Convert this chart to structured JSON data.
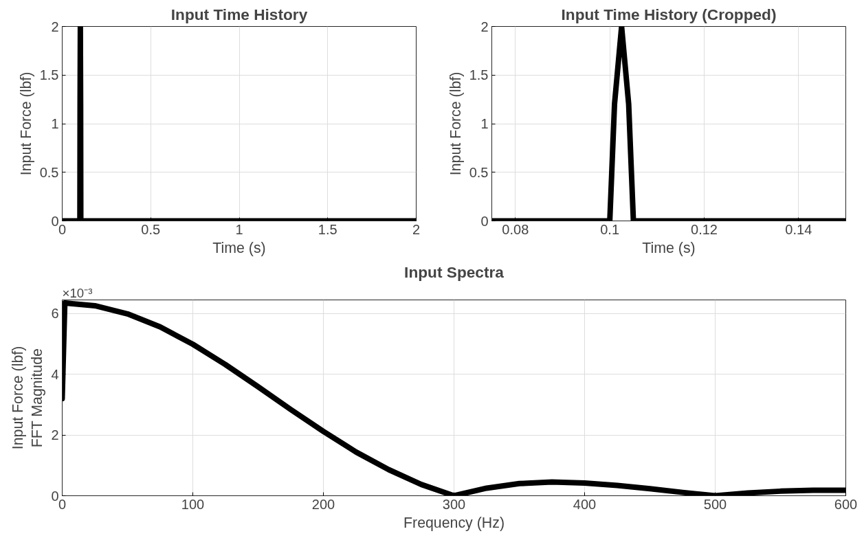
{
  "chart_data": [
    {
      "type": "line",
      "title": "Input Time History",
      "xlabel": "Time (s)",
      "ylabel": "Input Force (lbf)",
      "xlim": [
        0,
        2
      ],
      "ylim": [
        0,
        2
      ],
      "xticks": [
        0,
        0.5,
        1,
        1.5,
        2
      ],
      "yticks": [
        0,
        0.5,
        1,
        1.5,
        2
      ],
      "grid": true,
      "series": [
        {
          "color": "#000000",
          "x": [
            0,
            0.1,
            0.101,
            0.1025,
            0.104,
            0.105,
            2
          ],
          "values": [
            0,
            0,
            1.2,
            2,
            1.2,
            0,
            0
          ]
        }
      ]
    },
    {
      "type": "line",
      "title": "Input Time History (Cropped)",
      "xlabel": "Time (s)",
      "ylabel": "Input Force (lbf)",
      "xlim": [
        0.075,
        0.15
      ],
      "ylim": [
        0,
        2
      ],
      "xticks": [
        0.08,
        0.1,
        0.12,
        0.14
      ],
      "yticks": [
        0,
        0.5,
        1,
        1.5,
        2
      ],
      "grid": true,
      "series": [
        {
          "color": "#000000",
          "x": [
            0.075,
            0.1,
            0.101,
            0.1025,
            0.104,
            0.105,
            0.15
          ],
          "values": [
            0,
            0,
            1.2,
            2,
            1.2,
            0,
            0
          ]
        }
      ]
    },
    {
      "type": "line",
      "title": "Input Spectra",
      "xlabel": "Frequency (Hz)",
      "ylabel": "Input Force (lbf)\nFFT Magnitude",
      "xlim": [
        0,
        600
      ],
      "ylim": [
        0,
        6.45
      ],
      "xticks": [
        0,
        100,
        200,
        300,
        400,
        500,
        600
      ],
      "yticks": [
        0,
        2,
        4,
        6
      ],
      "grid": true,
      "annotations": [
        "×10⁻³"
      ],
      "series": [
        {
          "color": "#000000",
          "x": [
            0,
            2,
            25,
            50,
            75,
            100,
            125,
            150,
            175,
            200,
            225,
            250,
            275,
            300,
            325,
            350,
            375,
            400,
            425,
            450,
            475,
            500,
            525,
            550,
            575,
            600
          ],
          "values": [
            3.2,
            6.35,
            6.26,
            5.99,
            5.56,
            4.99,
            4.32,
            3.59,
            2.84,
            2.12,
            1.44,
            0.86,
            0.37,
            0,
            0.25,
            0.4,
            0.45,
            0.42,
            0.34,
            0.23,
            0.11,
            0,
            0.09,
            0.15,
            0.18,
            0.18
          ]
        }
      ]
    }
  ]
}
